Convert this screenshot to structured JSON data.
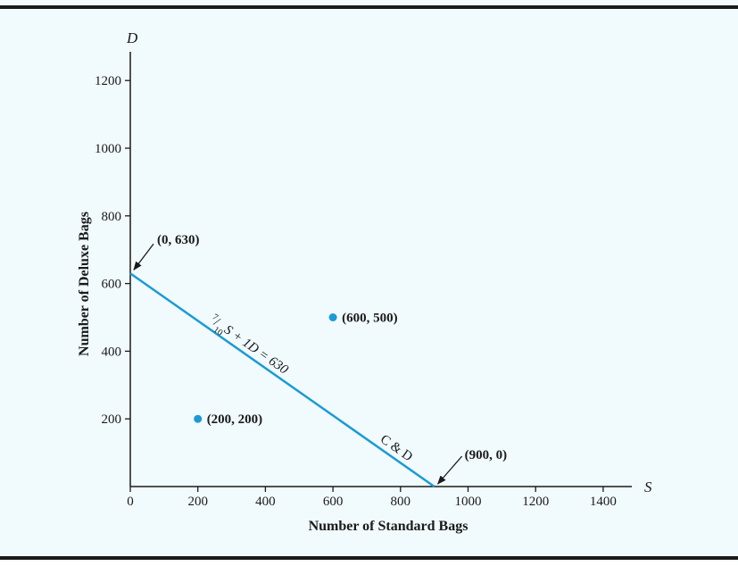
{
  "chart_data": {
    "type": "line",
    "xlabel": "Number of Standard Bags",
    "ylabel": "Number of Deluxe Bags",
    "x_var": "S",
    "y_var": "D",
    "xlim": [
      0,
      1500
    ],
    "ylim": [
      0,
      1300
    ],
    "x_ticks": [
      0,
      200,
      400,
      600,
      800,
      1000,
      1200,
      1400
    ],
    "y_ticks": [
      200,
      400,
      600,
      800,
      1000,
      1200
    ],
    "grid": false,
    "colors": {
      "series": "#1b9ad6",
      "axis": "#1a1a1a",
      "background": "#f1fafd",
      "frame": "#1a1a1a"
    },
    "series": [
      {
        "points": [
          [
            0,
            630
          ],
          [
            900,
            0
          ]
        ],
        "equation_label": {
          "num": "7",
          "den": "10",
          "rest": "S + 1D = 630"
        },
        "name_label": "C & D"
      }
    ],
    "points": [
      {
        "x": 200,
        "y": 200,
        "label": "(200, 200)"
      },
      {
        "x": 600,
        "y": 500,
        "label": "(600, 500)"
      }
    ],
    "annotations": [
      {
        "x": 0,
        "y": 630,
        "label": "(0, 630)"
      },
      {
        "x": 900,
        "y": 0,
        "label": "(900, 0)"
      }
    ]
  }
}
